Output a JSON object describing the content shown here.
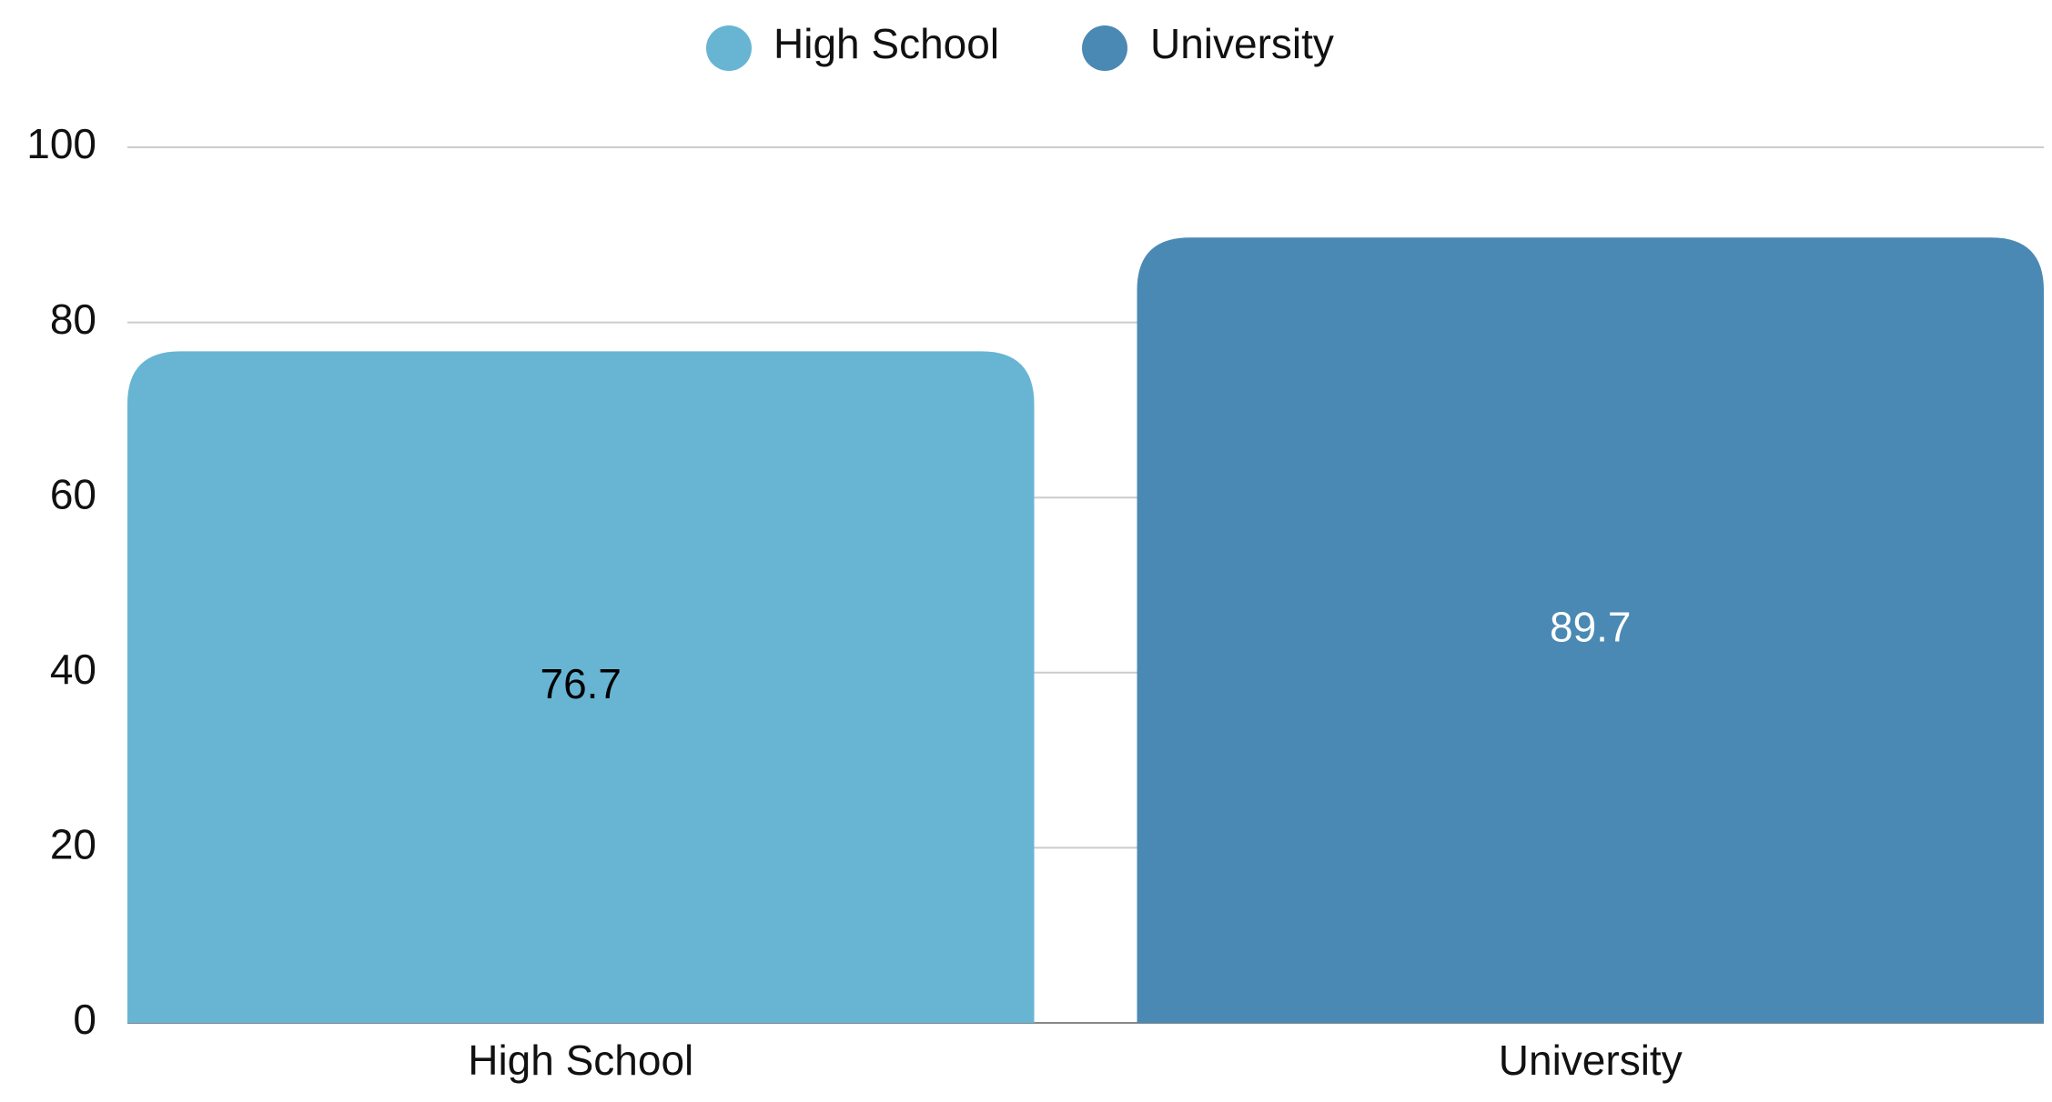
{
  "chart_data": {
    "type": "bar",
    "categories": [
      "High School",
      "University"
    ],
    "values": [
      76.7,
      89.7
    ],
    "colors": [
      "#67b5d3",
      "#4a89b4"
    ],
    "label_colors": [
      "#000000",
      "#ffffff"
    ],
    "ylim": [
      0,
      100
    ],
    "yticks": [
      0,
      20,
      40,
      60,
      80,
      100
    ],
    "grid": true,
    "legend": "top"
  }
}
